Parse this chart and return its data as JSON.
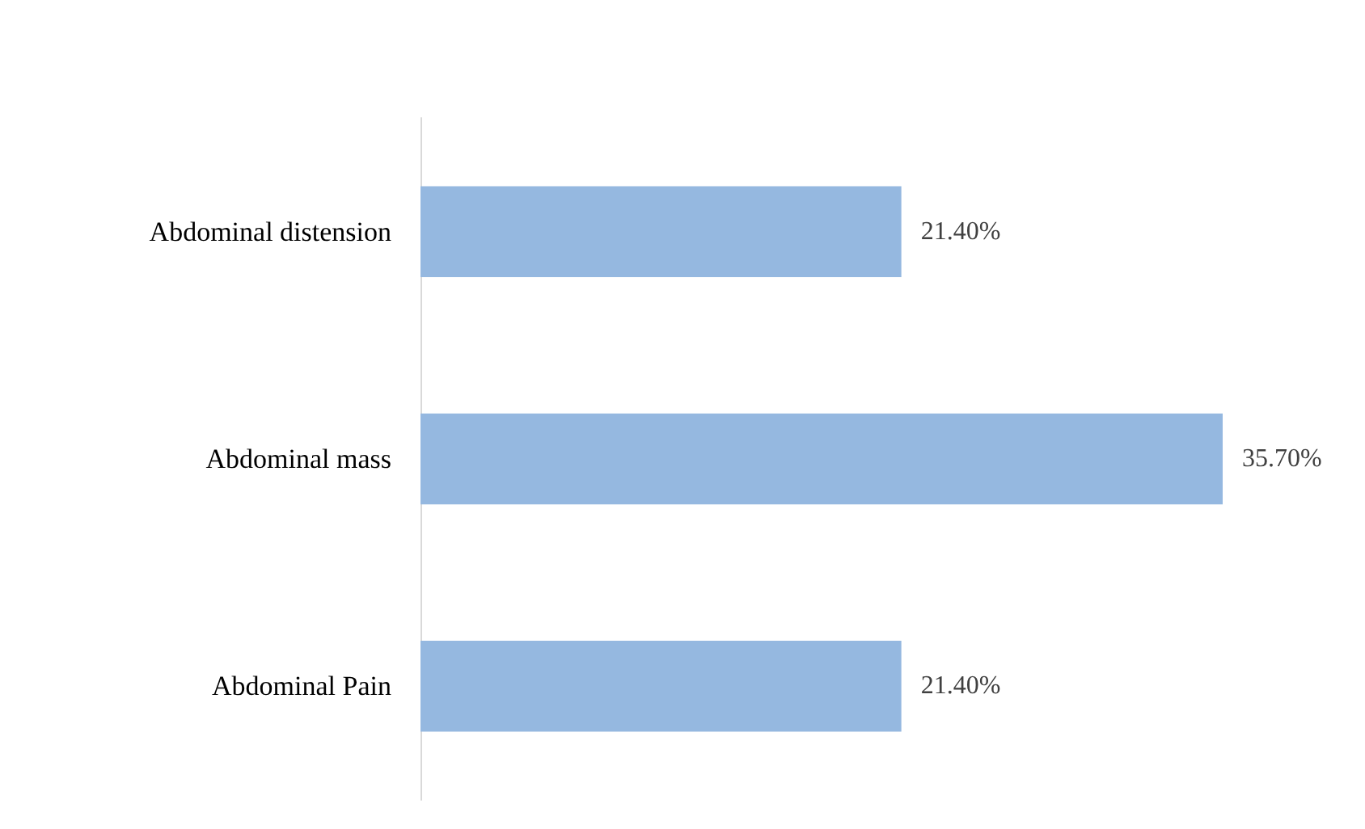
{
  "chart_data": {
    "type": "bar",
    "orientation": "horizontal",
    "categories": [
      "Abdominal distension",
      "Abdominal mass",
      "Abdominal Pain"
    ],
    "values": [
      21.4,
      35.7,
      21.4
    ],
    "value_labels": [
      "21.40%",
      "35.70%",
      "21.40%"
    ],
    "color": "#95b8e0",
    "grid": false
  }
}
